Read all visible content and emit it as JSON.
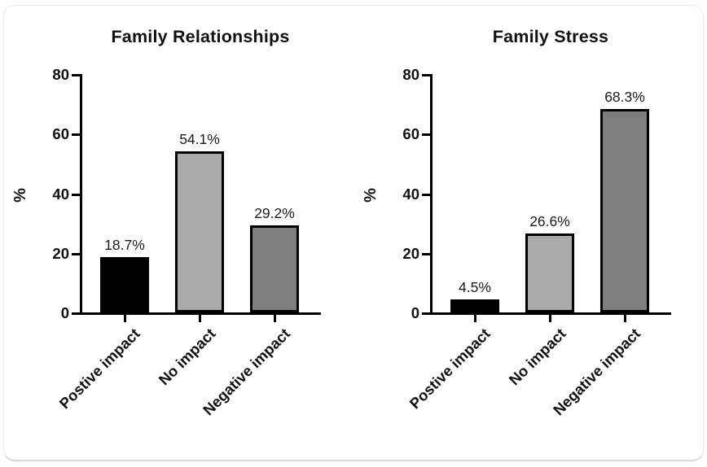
{
  "figure": {
    "background_color": "#ffffff",
    "card_border_color": "#ececef"
  },
  "chart_data": [
    {
      "type": "bar",
      "title": "Family Relationships",
      "xlabel": "",
      "ylabel": "%",
      "ylim": [
        0,
        80
      ],
      "yticks": [
        0,
        20,
        40,
        60,
        80
      ],
      "categories": [
        "Postive impact",
        "No impact",
        "Negative impact"
      ],
      "values": [
        18.7,
        54.1,
        29.2
      ],
      "value_labels": [
        "18.7%",
        "54.1%",
        "29.2%"
      ],
      "bar_colors": [
        "#000000",
        "#aaaaaa",
        "#7e7e7e"
      ],
      "bar_border_color": "#000000",
      "grid": false,
      "legend": "none"
    },
    {
      "type": "bar",
      "title": "Family Stress",
      "xlabel": "",
      "ylabel": "%",
      "ylim": [
        0,
        80
      ],
      "yticks": [
        0,
        20,
        40,
        60,
        80
      ],
      "categories": [
        "Postive impact",
        "No impact",
        "Negative impact"
      ],
      "values": [
        4.5,
        26.6,
        68.3
      ],
      "value_labels": [
        "4.5%",
        "26.6%",
        "68.3%"
      ],
      "bar_colors": [
        "#000000",
        "#aaaaaa",
        "#7e7e7e"
      ],
      "bar_border_color": "#000000",
      "grid": false,
      "legend": "none"
    }
  ]
}
